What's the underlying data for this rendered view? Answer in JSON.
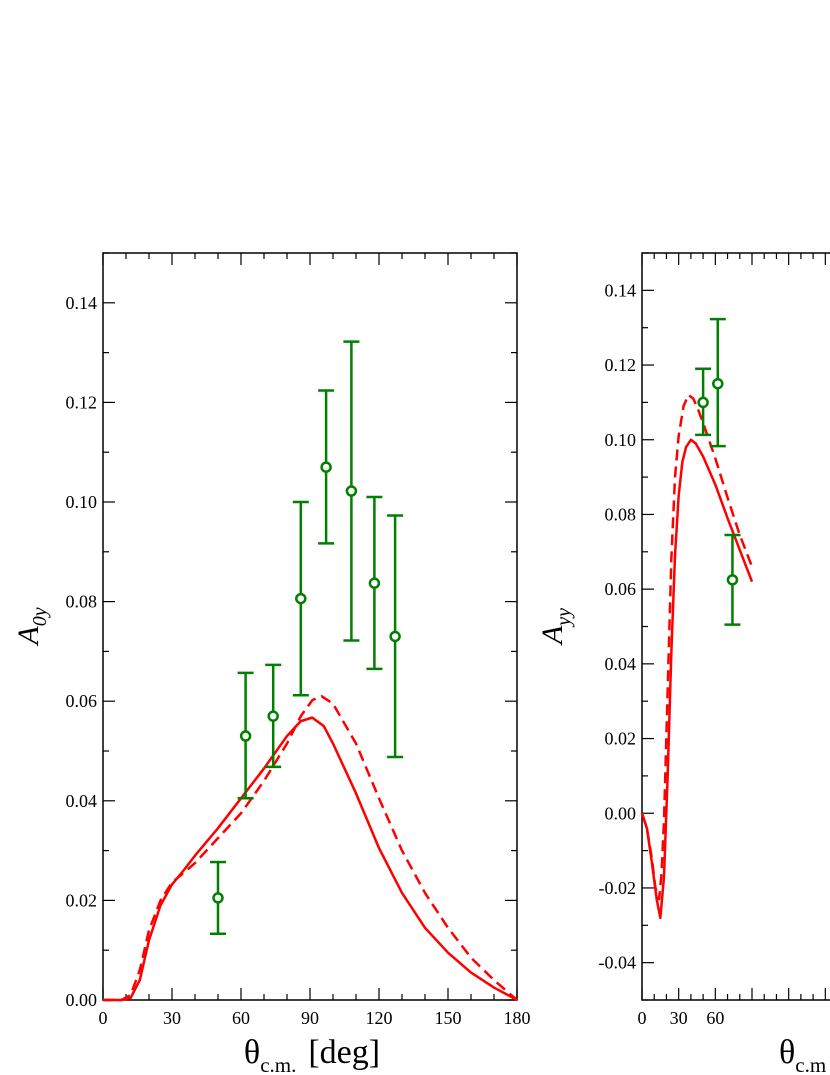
{
  "chart_data": [
    {
      "type": "line",
      "ylabel": "A",
      "ylabel_sub": "0y",
      "xlabel": "θ",
      "xlabel_sub": "c.m.",
      "xlabel_unit": "[deg]",
      "xlim": [
        0,
        180
      ],
      "ylim": [
        0.0,
        0.15
      ],
      "x_ticks": [
        "0",
        "30",
        "60",
        "90",
        "120",
        "150",
        "180"
      ],
      "y_ticks": [
        "0.00",
        "0.02",
        "0.04",
        "0.06",
        "0.08",
        "0.10",
        "0.12",
        "0.14"
      ],
      "grid": false,
      "colors": {
        "theory": "#ff0000",
        "data": "#008000"
      },
      "series": [
        {
          "style": "solid",
          "x": [
            0,
            8,
            12,
            16,
            20,
            25,
            30,
            35,
            40,
            50,
            60,
            70,
            80,
            86,
            91,
            96,
            100,
            110,
            120,
            130,
            140,
            150,
            160,
            170,
            180
          ],
          "y": [
            0.0,
            0.0,
            0.0004,
            0.004,
            0.012,
            0.019,
            0.0232,
            0.026,
            0.029,
            0.0345,
            0.0405,
            0.0465,
            0.053,
            0.056,
            0.0567,
            0.055,
            0.0515,
            0.0415,
            0.0305,
            0.0215,
            0.0145,
            0.0095,
            0.0055,
            0.0025,
            0.0
          ]
        },
        {
          "style": "dashed",
          "x": [
            0,
            8,
            12,
            16,
            20,
            25,
            30,
            35,
            40,
            50,
            60,
            70,
            80,
            86,
            91,
            95,
            100,
            110,
            120,
            130,
            140,
            150,
            160,
            170,
            180
          ],
          "y": [
            0.0,
            0.0,
            0.001,
            0.006,
            0.014,
            0.02,
            0.0236,
            0.0255,
            0.0275,
            0.0325,
            0.0375,
            0.044,
            0.0515,
            0.057,
            0.0602,
            0.061,
            0.0595,
            0.0515,
            0.0405,
            0.03,
            0.0215,
            0.0145,
            0.0085,
            0.004,
            0.0
          ]
        },
        {
          "type": "scatter_errorbar",
          "points": [
            {
              "x": 50,
              "y": 0.0205,
              "err_lo": 0.0133,
              "err_hi": 0.0277
            },
            {
              "x": 62,
              "y": 0.053,
              "err_lo": 0.0405,
              "err_hi": 0.0657
            },
            {
              "x": 74,
              "y": 0.057,
              "err_lo": 0.0468,
              "err_hi": 0.0673
            },
            {
              "x": 86,
              "y": 0.0806,
              "err_lo": 0.0612,
              "err_hi": 0.1
            },
            {
              "x": 97,
              "y": 0.107,
              "err_lo": 0.0917,
              "err_hi": 0.1224
            },
            {
              "x": 108,
              "y": 0.1022,
              "err_lo": 0.0722,
              "err_hi": 0.1322
            },
            {
              "x": 118,
              "y": 0.0837,
              "err_lo": 0.0665,
              "err_hi": 0.101
            },
            {
              "x": 127,
              "y": 0.073,
              "err_lo": 0.0488,
              "err_hi": 0.0973
            }
          ]
        }
      ]
    },
    {
      "type": "line",
      "ylabel": "A",
      "ylabel_sub": "yy",
      "xlabel": "θ",
      "xlabel_sub": "c.m",
      "xlim": [
        0,
        180
      ],
      "ylim": [
        -0.05,
        0.15
      ],
      "x_ticks": [
        "0",
        "30",
        "60"
      ],
      "y_ticks": [
        "-0.04",
        "-0.02",
        "0.00",
        "0.02",
        "0.04",
        "0.06",
        "0.08",
        "0.10",
        "0.12",
        "0.14"
      ],
      "grid": false,
      "colors": {
        "theory": "#ff0000",
        "data": "#008000"
      },
      "series": [
        {
          "style": "solid",
          "x": [
            0,
            4,
            8,
            12,
            15,
            18,
            21,
            24,
            27,
            30,
            33,
            36,
            40,
            44,
            50,
            60,
            70,
            80,
            90
          ],
          "y": [
            0.0,
            -0.004,
            -0.013,
            -0.023,
            -0.028,
            -0.017,
            0.01,
            0.043,
            0.069,
            0.085,
            0.094,
            0.098,
            0.1,
            0.099,
            0.0955,
            0.088,
            0.079,
            0.0705,
            0.062
          ]
        },
        {
          "style": "dashed",
          "x": [
            0,
            4,
            8,
            11,
            14,
            16,
            18,
            21,
            24,
            27,
            30,
            34,
            38,
            42,
            46,
            50,
            60,
            70,
            80,
            90
          ],
          "y": [
            0.0,
            -0.004,
            -0.012,
            -0.02,
            -0.023,
            -0.016,
            -0.002,
            0.033,
            0.068,
            0.09,
            0.101,
            0.109,
            0.112,
            0.111,
            0.108,
            0.1045,
            0.095,
            0.0845,
            0.0745,
            0.066
          ]
        },
        {
          "type": "scatter_errorbar",
          "points": [
            {
              "x": 50,
              "y": 0.11,
              "err_lo": 0.1013,
              "err_hi": 0.119
            },
            {
              "x": 62,
              "y": 0.115,
              "err_lo": 0.0983,
              "err_hi": 0.1323
            },
            {
              "x": 74,
              "y": 0.0625,
              "err_lo": 0.0505,
              "err_hi": 0.0745
            }
          ]
        }
      ]
    }
  ]
}
